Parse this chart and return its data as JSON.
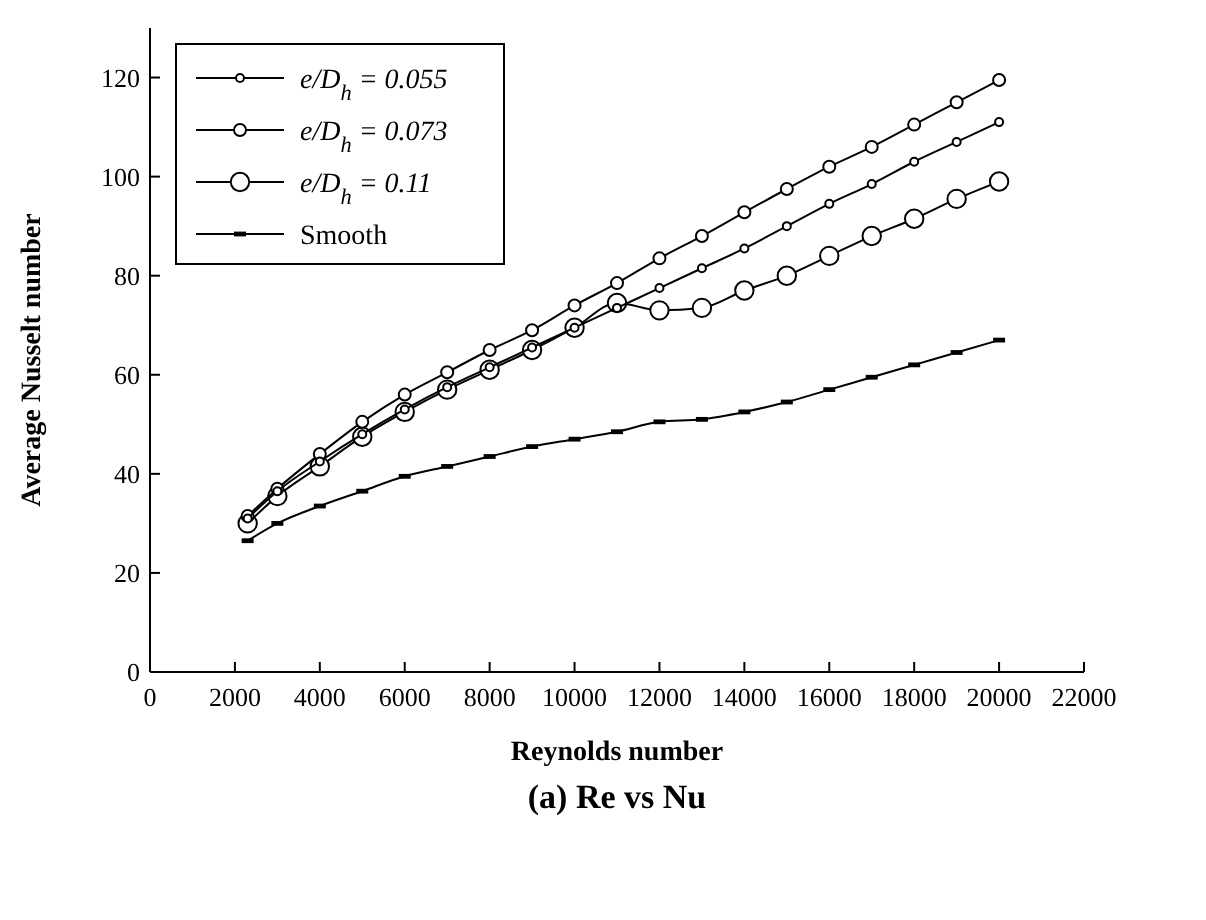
{
  "chart_data": {
    "type": "line",
    "title": "(a) Re vs Nu",
    "xlabel": "Reynolds number",
    "ylabel": "Average Nusselt number",
    "x": [
      2300,
      3000,
      4000,
      5000,
      6000,
      7000,
      8000,
      9000,
      10000,
      11000,
      12000,
      13000,
      14000,
      15000,
      16000,
      17000,
      18000,
      19000,
      20000
    ],
    "xlim": [
      0,
      22000
    ],
    "xticks": [
      0,
      2000,
      4000,
      6000,
      8000,
      10000,
      12000,
      14000,
      16000,
      18000,
      20000,
      22000
    ],
    "ylim": [
      0,
      130
    ],
    "yticks": [
      0,
      20,
      40,
      60,
      80,
      100,
      120
    ],
    "grid": false,
    "legend": "top left",
    "line_style": "solid",
    "series": [
      {
        "name": "e/D$_{h}$ = 0.055",
        "color": "#000000",
        "marker": "circle",
        "values": [
          31,
          36.5,
          42.5,
          48,
          53,
          57.5,
          61.5,
          65.5,
          69.5,
          73.5,
          77.5,
          81.5,
          85.5,
          90,
          94.5,
          98.5,
          103,
          107,
          111
        ]
      },
      {
        "name": "e/D$_{h}$ = 0.073",
        "color": "#000000",
        "marker": "circle",
        "values": [
          31.5,
          37,
          44,
          50.5,
          56,
          60.5,
          65,
          69,
          74,
          78.5,
          83.5,
          88,
          92.8,
          97.5,
          102,
          106,
          110.5,
          115,
          119.5
        ]
      },
      {
        "name": "e/D$_{h}$ = 0.11",
        "color": "#000000",
        "marker": "circle",
        "values": [
          30,
          35.5,
          41.5,
          47.5,
          52.5,
          57,
          61,
          65,
          69.5,
          74.5,
          73,
          73.5,
          77,
          80,
          84,
          88,
          91.5,
          95.5,
          99
        ]
      },
      {
        "name": "Smooth",
        "color": "#000000",
        "marker": "square",
        "values": [
          26.5,
          30,
          33.5,
          36.5,
          39.5,
          41.5,
          43.5,
          45.5,
          47,
          48.5,
          50.5,
          51,
          52.5,
          54.5,
          57,
          59.5,
          62,
          64.5,
          67
        ]
      }
    ]
  }
}
